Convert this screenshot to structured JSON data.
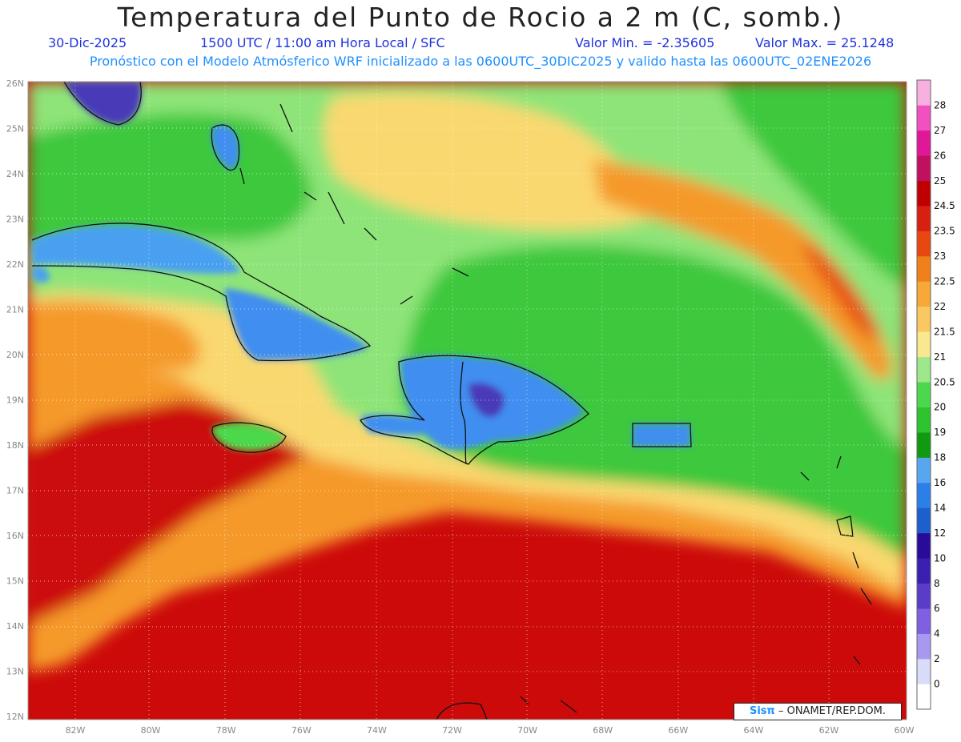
{
  "title": "Temperatura del Punto de Rocio a 2 m (C, somb.)",
  "info": {
    "date": "30-Dic-2025",
    "time": "1500 UTC / 11:00 am Hora Local / SFC",
    "min": "Valor Min. = -2.35605",
    "max": "Valor Max. = 25.1248"
  },
  "forecast_note": "Pronóstico con el Modelo Atmósferico WRF inicializado a las 0600UTC_30DIC2025 y valido hasta las  0600UTC_02ENE2026",
  "credit": {
    "logo": "Sisπ",
    "text": "– ONAMET/REP.DOM."
  },
  "axes": {
    "lon_labels": [
      "82W",
      "80W",
      "78W",
      "76W",
      "74W",
      "72W",
      "70W",
      "68W",
      "66W",
      "64W",
      "62W",
      "60W"
    ],
    "lat_labels": [
      "26N",
      "25N",
      "24N",
      "23N",
      "22N",
      "21N",
      "20N",
      "19N",
      "18N",
      "17N",
      "16N",
      "15N",
      "14N",
      "13N",
      "12N"
    ]
  },
  "colorbar": {
    "labels": [
      "0",
      "2",
      "4",
      "6",
      "8",
      "10",
      "12",
      "14",
      "16",
      "18",
      "19",
      "20",
      "20.5",
      "21",
      "21.5",
      "22",
      "22.5",
      "23",
      "23.5",
      "24.5",
      "25",
      "26",
      "27",
      "28"
    ],
    "colors": [
      "#ffffff",
      "#d8dcf8",
      "#a898f0",
      "#8060e0",
      "#5a3cc8",
      "#3a1fb0",
      "#2a0a9a",
      "#1e5fd0",
      "#2a7fe8",
      "#58a6f0",
      "#109a10",
      "#2ec42e",
      "#4cd84c",
      "#9ce88a",
      "#fae890",
      "#fac860",
      "#f8a838",
      "#f08018",
      "#e84810",
      "#d82010",
      "#c00000",
      "#c01060",
      "#e01898",
      "#f050c0",
      "#f8b0e0"
    ]
  },
  "colors": {
    "warm_sea": "#cc0a0a",
    "orange_band": "#f59a2a",
    "yellow_band": "#fad870",
    "green_ocean": "#3cc83c",
    "light_green": "#8ee478",
    "blue_land": "#3f8ef0",
    "deep_purple": "#4a3ab8"
  }
}
